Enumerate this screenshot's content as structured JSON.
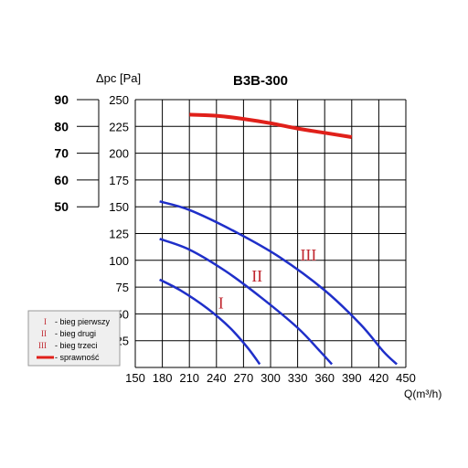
{
  "chart_data": {
    "type": "line",
    "title": "B3B-300",
    "ylabel": "Δpc [Pa]",
    "xlabel": "Q(m³/h)",
    "xlim": [
      150,
      450
    ],
    "ylim": [
      0,
      250
    ],
    "x_ticks": [
      "150",
      "180",
      "210",
      "240",
      "270",
      "300",
      "330",
      "360",
      "390",
      "420",
      "450"
    ],
    "y_ticks": [
      "25",
      "50",
      "75",
      "100",
      "125",
      "150",
      "175",
      "200",
      "225",
      "250"
    ],
    "efficiency_axis": {
      "ticks": [
        "50",
        "60",
        "70",
        "80",
        "90"
      ],
      "pa_positions": [
        150,
        175,
        200,
        225,
        250
      ]
    },
    "grid": true,
    "series": [
      {
        "name": "bieg pierwszy",
        "label": "I",
        "color": "#1f2fc9",
        "kind": "pressure",
        "points": [
          [
            177,
            82
          ],
          [
            200,
            72
          ],
          [
            230,
            55
          ],
          [
            255,
            37
          ],
          [
            275,
            18
          ],
          [
            288,
            3
          ]
        ],
        "label_at": [
          245,
          55
        ]
      },
      {
        "name": "bieg drugi",
        "label": "II",
        "color": "#1f2fc9",
        "kind": "pressure",
        "points": [
          [
            177,
            120
          ],
          [
            210,
            110
          ],
          [
            250,
            90
          ],
          [
            290,
            65
          ],
          [
            330,
            37
          ],
          [
            355,
            15
          ],
          [
            368,
            3
          ]
        ],
        "label_at": [
          285,
          80
        ]
      },
      {
        "name": "bieg trzeci",
        "label": "III",
        "color": "#1f2fc9",
        "kind": "pressure",
        "points": [
          [
            177,
            155
          ],
          [
            210,
            147
          ],
          [
            260,
            127
          ],
          [
            310,
            103
          ],
          [
            360,
            72
          ],
          [
            400,
            40
          ],
          [
            425,
            15
          ],
          [
            440,
            3
          ]
        ],
        "label_at": [
          342,
          100
        ]
      },
      {
        "name": "sprawność",
        "color": "#e0201a",
        "kind": "efficiency",
        "points": [
          [
            210,
            236
          ],
          [
            240,
            235
          ],
          [
            270,
            232
          ],
          [
            300,
            228
          ],
          [
            330,
            223
          ],
          [
            360,
            219
          ],
          [
            390,
            215
          ]
        ]
      }
    ],
    "legend": {
      "position": "bottom-left",
      "items": [
        {
          "symbol": "I",
          "text": "- bieg pierwszy"
        },
        {
          "symbol": "II",
          "text": "- bieg drugi"
        },
        {
          "symbol": "III",
          "text": "- bieg trzeci"
        },
        {
          "symbol": "line",
          "text": "- sprawność"
        }
      ]
    }
  }
}
